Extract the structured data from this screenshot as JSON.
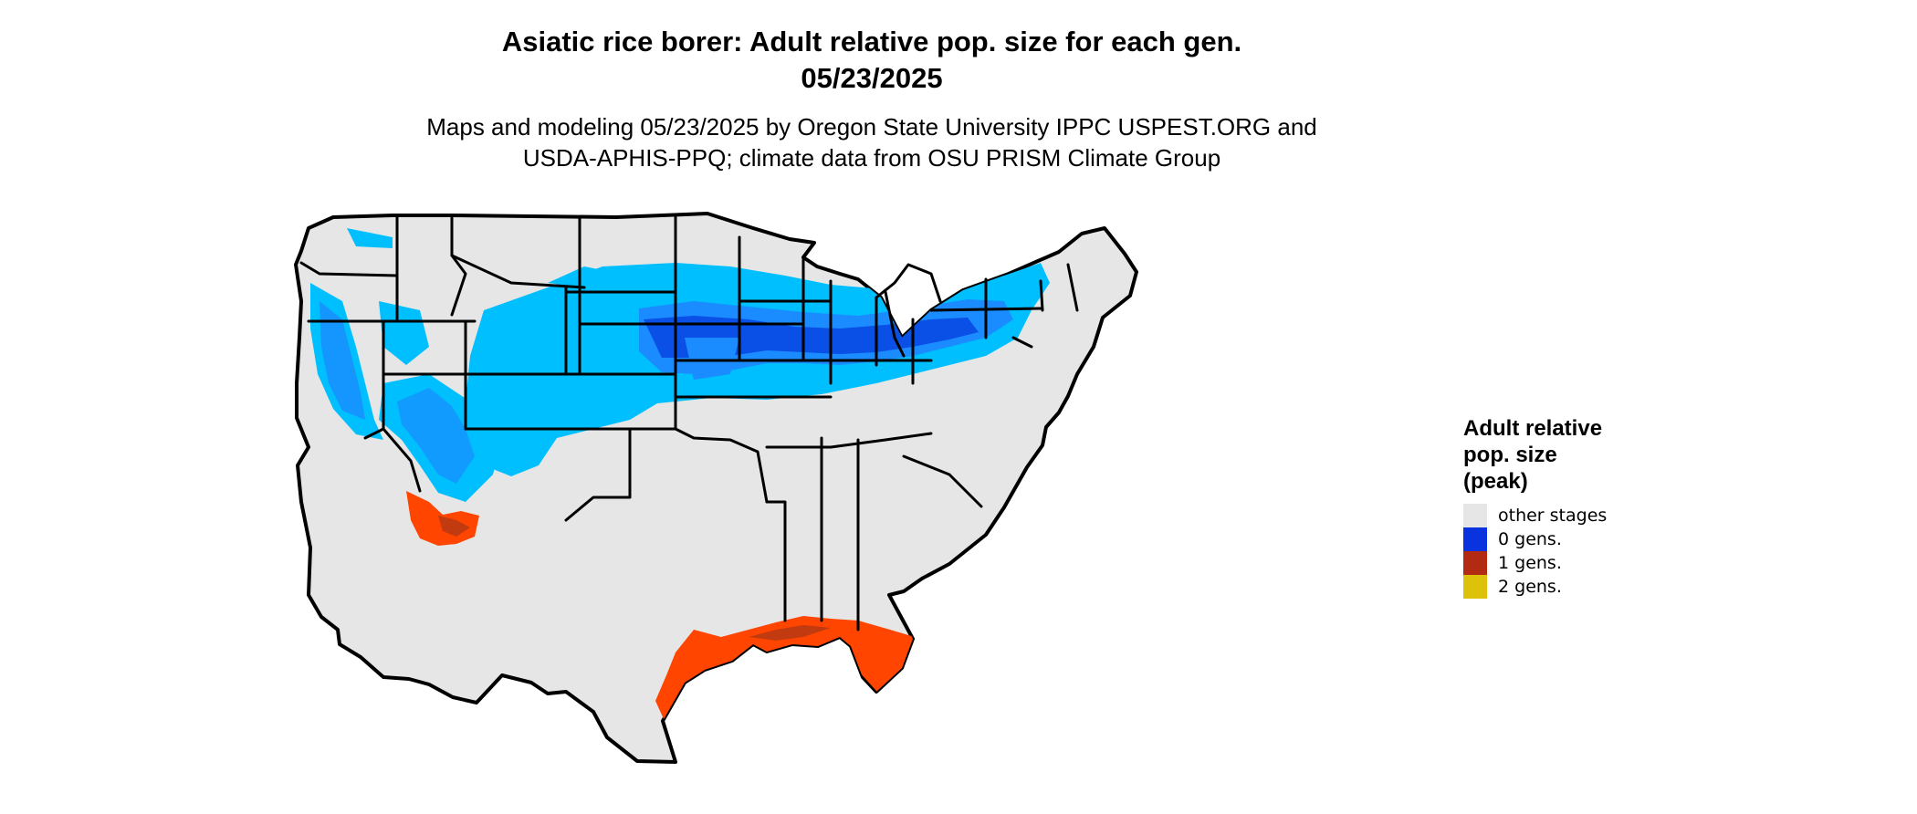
{
  "title": {
    "line1": "Asiatic rice borer: Adult relative pop. size for each gen.",
    "line2": "05/23/2025"
  },
  "subtitle": {
    "line1": "Maps and modeling 05/23/2025 by Oregon State University IPPC USPEST.ORG and",
    "line2": "USDA-APHIS-PPQ; climate data from OSU PRISM Climate Group"
  },
  "legend": {
    "title_line1": "Adult relative",
    "title_line2": "pop. size",
    "title_line3": "(peak)",
    "items": [
      {
        "label": "other stages",
        "color": "#e6e6e6"
      },
      {
        "label": "0 gens.",
        "color": "#0a33e0"
      },
      {
        "label": "1 gens.",
        "color": "#b22a12"
      },
      {
        "label": "2 gens.",
        "color": "#dcc20a"
      }
    ]
  },
  "map_colors": {
    "land": "#e6e6e6",
    "border": "#000000",
    "light_blue": "#00bfff",
    "mid_blue": "#1a8cff",
    "dark_blue": "#0a4fe6",
    "orange_red": "#ff4500",
    "dark_red": "#c23a10",
    "yellow": "#e6d400"
  }
}
